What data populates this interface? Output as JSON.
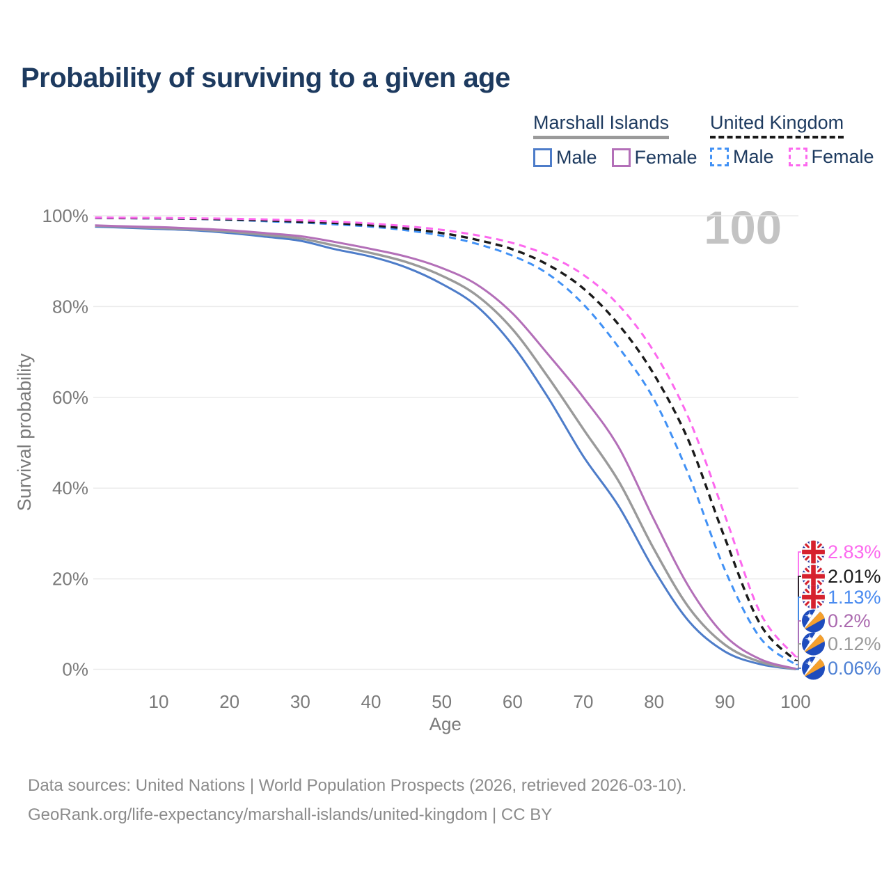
{
  "page": {
    "title": "Probability of surviving to a given age"
  },
  "age_counter": "100",
  "legend": {
    "groups": [
      {
        "name": "Marshall Islands",
        "line_style": "solid",
        "underline_color": "#9a9a9a",
        "items": [
          {
            "label": "Male",
            "color": "#4d7cc9"
          },
          {
            "label": "Female",
            "color": "#b36fb8"
          }
        ]
      },
      {
        "name": "United Kingdom",
        "line_style": "dashed",
        "underline_color": "#191919",
        "items": [
          {
            "label": "Male",
            "color": "#4191f5"
          },
          {
            "label": "Female",
            "color": "#fc68ee"
          }
        ]
      }
    ]
  },
  "chart_data": {
    "type": "line",
    "title": "Probability of surviving to a given age",
    "xlabel": "Age",
    "ylabel": "Survival probability",
    "xlim": [
      1,
      100
    ],
    "ylim": [
      0,
      100
    ],
    "x_ticks": [
      10,
      20,
      30,
      40,
      50,
      60,
      70,
      80,
      90,
      100
    ],
    "y_ticks": [
      0,
      20,
      40,
      60,
      80,
      100
    ],
    "y_tick_suffix": "%",
    "grid": "horizontal-only",
    "legend_position": "top-right",
    "ages": [
      1,
      5,
      10,
      15,
      20,
      25,
      30,
      35,
      40,
      45,
      50,
      55,
      60,
      65,
      70,
      75,
      80,
      85,
      90,
      95,
      100
    ],
    "series": [
      {
        "name": "Marshall Islands Male",
        "country": "Marshall Islands",
        "sex": "Male",
        "color": "#4d7cc9",
        "dash": false,
        "flag": "mh",
        "end_label": "0.06%",
        "label_color": "#4d80d4",
        "values": [
          97.6,
          97.4,
          97.1,
          96.8,
          96.2,
          95.4,
          94.5,
          92.6,
          91.0,
          88.6,
          85.0,
          80.0,
          71.5,
          60.0,
          47.0,
          36.0,
          22.0,
          10.5,
          4.0,
          1.2,
          0.06
        ]
      },
      {
        "name": "Marshall Islands Both sexes",
        "country": "Marshall Islands",
        "sex": "All",
        "color": "#9a9a9a",
        "dash": false,
        "flag": "mh",
        "end_label": "0.12%",
        "label_color": "#9a9a9a",
        "values": [
          97.8,
          97.6,
          97.3,
          97.0,
          96.5,
          95.8,
          95.0,
          93.4,
          91.8,
          89.8,
          86.8,
          82.4,
          75.0,
          64.5,
          53.0,
          41.5,
          26.5,
          13.5,
          5.5,
          1.7,
          0.12
        ]
      },
      {
        "name": "Marshall Islands Female",
        "country": "Marshall Islands",
        "sex": "Female",
        "color": "#b36fb8",
        "dash": false,
        "flag": "mh",
        "end_label": "0.2%",
        "label_color": "#aa68ae",
        "values": [
          97.9,
          97.7,
          97.5,
          97.2,
          96.8,
          96.2,
          95.5,
          94.2,
          92.7,
          91.0,
          88.5,
          84.8,
          78.5,
          69.5,
          60.0,
          49.0,
          33.0,
          18.0,
          7.5,
          2.3,
          0.2
        ]
      },
      {
        "name": "United Kingdom Male",
        "country": "United Kingdom",
        "sex": "Male",
        "color": "#4191f5",
        "dash": true,
        "flag": "gb",
        "end_label": "1.13%",
        "label_color": "#4a8bf0",
        "values": [
          99.5,
          99.45,
          99.4,
          99.3,
          99.1,
          98.8,
          98.5,
          98.1,
          97.6,
          96.8,
          95.6,
          93.8,
          91.2,
          87.2,
          80.5,
          71.0,
          59.5,
          42.5,
          22.0,
          7.0,
          1.13
        ]
      },
      {
        "name": "United Kingdom Both sexes",
        "country": "United Kingdom",
        "sex": "All",
        "color": "#1a1a1a",
        "dash": true,
        "flag": "gb",
        "end_label": "2.01%",
        "label_color": "#1a1a1a",
        "values": [
          99.55,
          99.5,
          99.45,
          99.35,
          99.2,
          99.0,
          98.7,
          98.4,
          97.9,
          97.2,
          96.2,
          94.7,
          92.6,
          89.2,
          84.0,
          76.0,
          65.0,
          50.0,
          29.0,
          10.0,
          2.01
        ]
      },
      {
        "name": "United Kingdom Female",
        "country": "United Kingdom",
        "sex": "Female",
        "color": "#fc68ee",
        "dash": true,
        "flag": "gb",
        "end_label": "2.83%",
        "label_color": "#fc68ee",
        "values": [
          99.6,
          99.57,
          99.53,
          99.45,
          99.35,
          99.2,
          99.0,
          98.7,
          98.3,
          97.7,
          96.9,
          95.7,
          94.0,
          91.3,
          87.0,
          80.3,
          70.0,
          55.0,
          34.0,
          12.5,
          2.83
        ]
      }
    ]
  },
  "source": {
    "line1": "Data sources: United Nations | World Population Prospects (2026, retrieved 2026-03-10).",
    "line2": "GeoRank.org/life-expectancy/marshall-islands/united-kingdom | CC BY"
  }
}
